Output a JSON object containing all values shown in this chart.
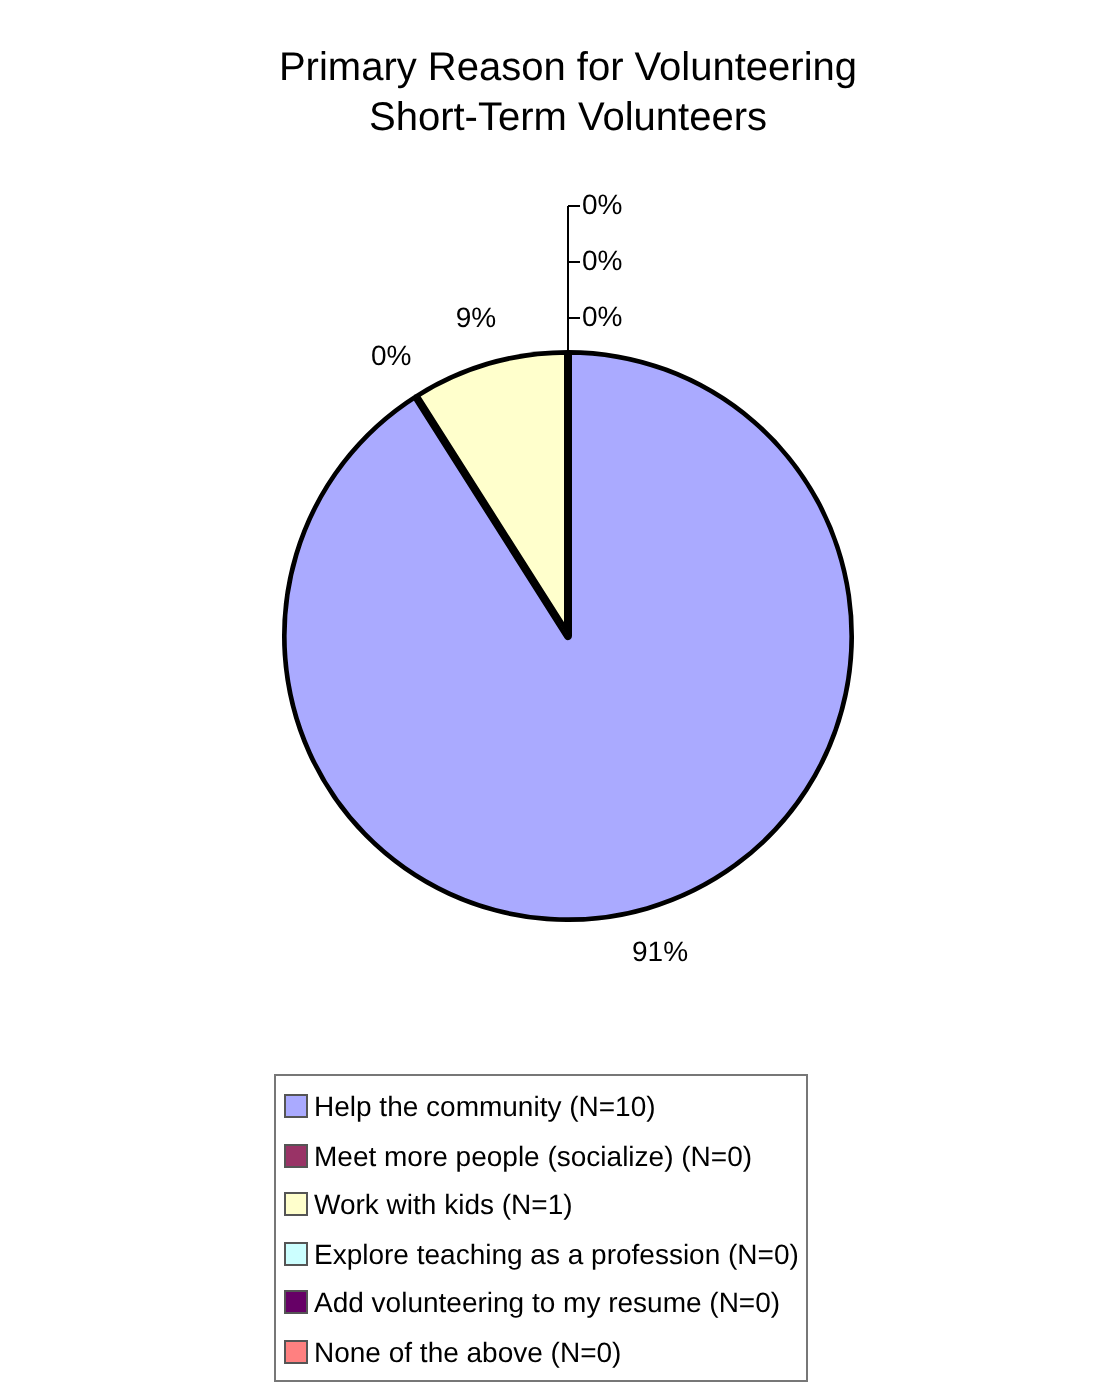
{
  "chart_data": {
    "type": "pie",
    "title": "Primary Reason for Volunteering\nShort-Term Volunteers",
    "categories": [
      "Help the community (N=10)",
      "Meet more people (socialize) (N=0)",
      "Work with kids (N=1)",
      "Explore teaching as a profession (N=0)",
      "Add volunteering to my resume (N=0)",
      "None of the above (N=0)"
    ],
    "values": [
      91,
      0,
      9,
      0,
      0,
      0
    ],
    "colors": [
      "#aaaaff",
      "#993366",
      "#ffffcc",
      "#ccffff",
      "#660066",
      "#ff8080"
    ],
    "value_labels": [
      "91%",
      "0%",
      "9%",
      "0%",
      "0%",
      "0%"
    ],
    "legend": "bottom"
  }
}
